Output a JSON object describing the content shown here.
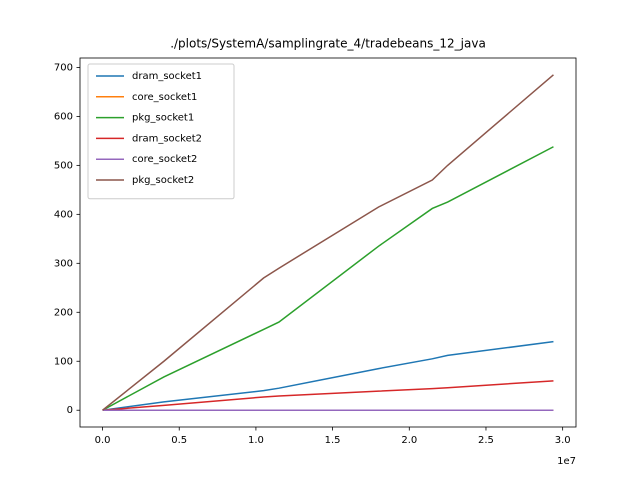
{
  "chart_data": {
    "type": "line",
    "title": "./plots/SystemA/samplingrate_4/tradebeans_12_java",
    "x": [
      0,
      4000000,
      10500000,
      11500000,
      18000000,
      21500000,
      22500000,
      29400000
    ],
    "series": [
      {
        "name": "dram_socket1",
        "color": "#1f77b4",
        "values": [
          0,
          17,
          40,
          45,
          85,
          105,
          112,
          140
        ]
      },
      {
        "name": "core_socket1",
        "color": "#ff7f0e",
        "values": [
          0,
          0,
          0,
          0,
          0,
          0,
          0,
          0
        ]
      },
      {
        "name": "pkg_socket1",
        "color": "#2ca02c",
        "values": [
          0,
          68,
          165,
          180,
          335,
          412,
          425,
          538
        ]
      },
      {
        "name": "dram_socket2",
        "color": "#d62728",
        "values": [
          0,
          10,
          27,
          29,
          39,
          44,
          46,
          60
        ]
      },
      {
        "name": "core_socket2",
        "color": "#9467bd",
        "values": [
          0,
          0,
          0,
          0,
          0,
          0,
          0,
          0
        ]
      },
      {
        "name": "pkg_socket2",
        "color": "#8c564b",
        "values": [
          0,
          100,
          270,
          290,
          415,
          470,
          500,
          685
        ]
      }
    ],
    "xlim": [
      -1470000,
      30870000
    ],
    "xticks": [
      {
        "value": 0,
        "label": "0.0"
      },
      {
        "value": 5000000,
        "label": "0.5"
      },
      {
        "value": 10000000,
        "label": "1.0"
      },
      {
        "value": 15000000,
        "label": "1.5"
      },
      {
        "value": 20000000,
        "label": "2.0"
      },
      {
        "value": 25000000,
        "label": "2.5"
      },
      {
        "value": 30000000,
        "label": "3.0"
      }
    ],
    "x_offset_label": "1e7",
    "ylim": [
      -34.25,
      719.25
    ],
    "yticks": [
      0,
      100,
      200,
      300,
      400,
      500,
      600,
      700
    ],
    "legend": "upper left"
  }
}
